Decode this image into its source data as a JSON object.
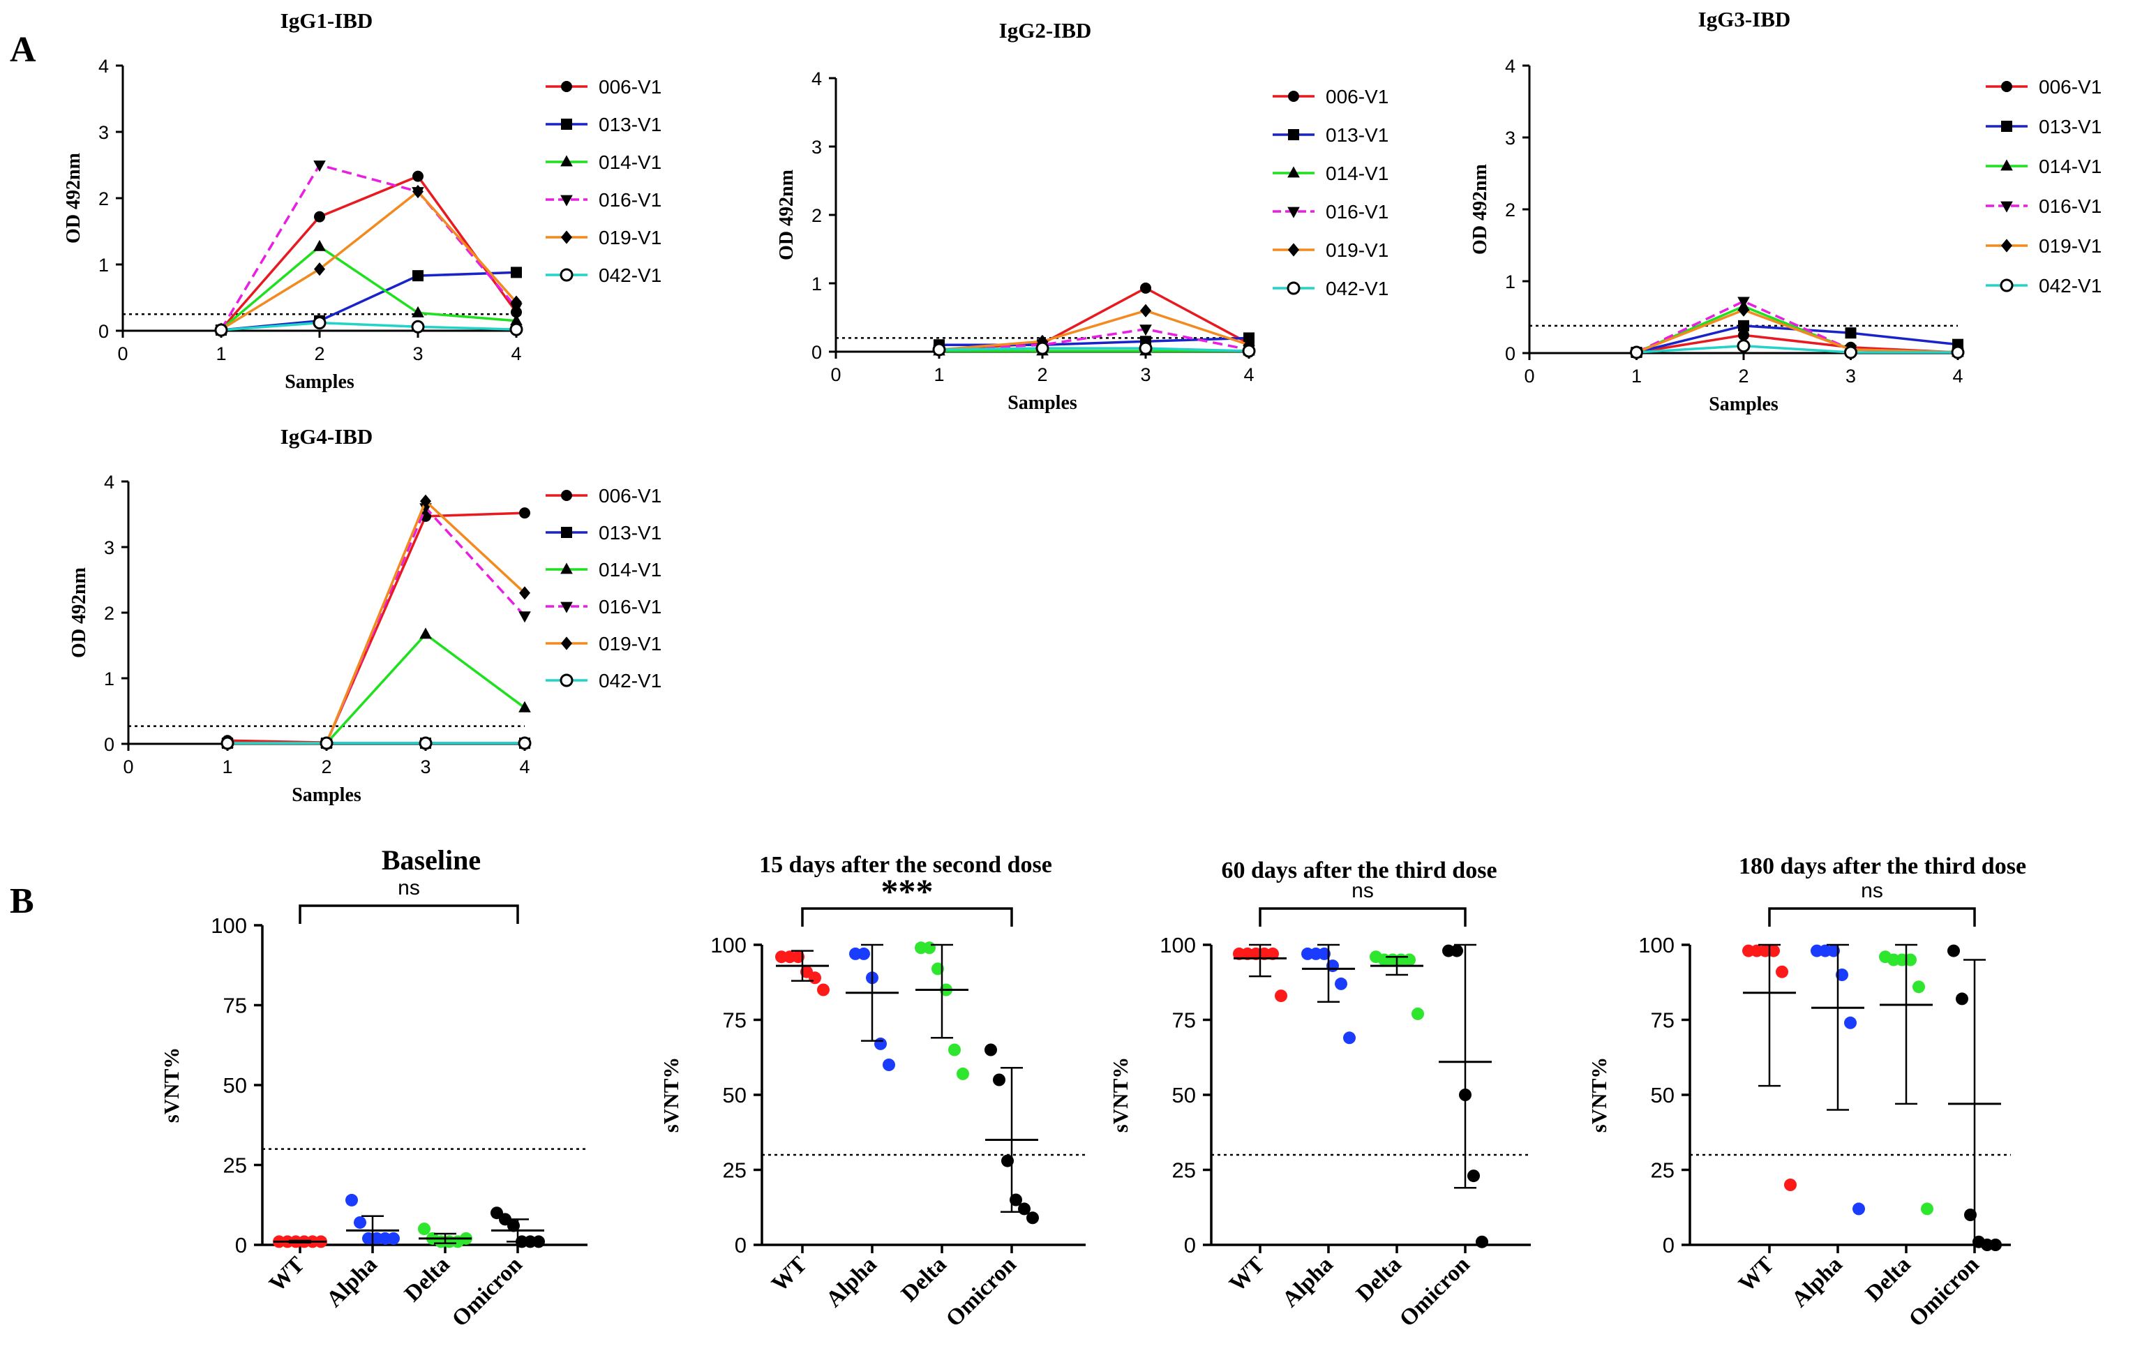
{
  "panel_labels": [
    "A",
    "B"
  ],
  "colors": {
    "006-V1": "#e8191f",
    "013-V1": "#1a23c9",
    "014-V1": "#1fe01f",
    "016-V1": "#e81fe0",
    "019-V1": "#f28a1f",
    "042-V1": "#22d3c8",
    "WT": "#ff1a1a",
    "Alpha": "#1a3cff",
    "Delta": "#2ee62e",
    "Omicron": "#000000"
  },
  "chart_data": [
    {
      "type": "line",
      "title": "IgG1-IBD",
      "xlabel": "Samples",
      "ylabel": "OD 492nm",
      "xlim": [
        0,
        4
      ],
      "ylim": [
        0,
        4
      ],
      "xticks": [
        0,
        1,
        2,
        3,
        4
      ],
      "yticks": [
        0,
        1,
        2,
        3,
        4
      ],
      "threshold": 0.25,
      "legend_position": "right",
      "x": [
        1,
        2,
        3,
        4
      ],
      "series": [
        {
          "name": "006-V1",
          "marker": "circle",
          "dashed": false,
          "values": [
            0.02,
            1.72,
            2.33,
            0.28
          ]
        },
        {
          "name": "013-V1",
          "marker": "square",
          "dashed": false,
          "values": [
            0.01,
            0.15,
            0.83,
            0.88
          ]
        },
        {
          "name": "014-V1",
          "marker": "triangle",
          "dashed": false,
          "values": [
            0.02,
            1.27,
            0.27,
            0.15
          ]
        },
        {
          "name": "016-V1",
          "marker": "triangle-down",
          "dashed": true,
          "values": [
            0.02,
            2.5,
            2.1,
            0.35
          ]
        },
        {
          "name": "019-V1",
          "marker": "diamond",
          "dashed": false,
          "values": [
            0.02,
            0.93,
            2.1,
            0.43
          ]
        },
        {
          "name": "042-V1",
          "marker": "circle-open",
          "dashed": false,
          "values": [
            0.01,
            0.12,
            0.06,
            0.02
          ]
        }
      ]
    },
    {
      "type": "line",
      "title": "IgG2-IBD",
      "xlabel": "Samples",
      "ylabel": "OD 492nm",
      "xlim": [
        0,
        4
      ],
      "ylim": [
        0,
        4
      ],
      "xticks": [
        0,
        1,
        2,
        3,
        4
      ],
      "yticks": [
        0,
        1,
        2,
        3,
        4
      ],
      "threshold": 0.2,
      "legend_position": "right",
      "x": [
        1,
        2,
        3,
        4
      ],
      "series": [
        {
          "name": "006-V1",
          "marker": "circle",
          "dashed": false,
          "values": [
            0.03,
            0.12,
            0.93,
            0.12
          ]
        },
        {
          "name": "013-V1",
          "marker": "square",
          "dashed": false,
          "values": [
            0.1,
            0.1,
            0.15,
            0.2
          ]
        },
        {
          "name": "014-V1",
          "marker": "triangle",
          "dashed": false,
          "values": [
            0.01,
            0.01,
            0.01,
            0.01
          ]
        },
        {
          "name": "016-V1",
          "marker": "triangle-down",
          "dashed": true,
          "values": [
            0.03,
            0.1,
            0.33,
            0.03
          ]
        },
        {
          "name": "019-V1",
          "marker": "diamond",
          "dashed": false,
          "values": [
            0.03,
            0.15,
            0.6,
            0.1
          ]
        },
        {
          "name": "042-V1",
          "marker": "circle-open",
          "dashed": false,
          "values": [
            0.03,
            0.05,
            0.05,
            0.01
          ]
        }
      ]
    },
    {
      "type": "line",
      "title": "IgG3-IBD",
      "xlabel": "Samples",
      "ylabel": "OD 492nm",
      "xlim": [
        0,
        4
      ],
      "ylim": [
        0,
        4
      ],
      "xticks": [
        0,
        1,
        2,
        3,
        4
      ],
      "yticks": [
        0,
        1,
        2,
        3,
        4
      ],
      "threshold": 0.38,
      "legend_position": "right",
      "x": [
        1,
        2,
        3,
        4
      ],
      "series": [
        {
          "name": "006-V1",
          "marker": "circle",
          "dashed": false,
          "values": [
            0.01,
            0.25,
            0.08,
            0.01
          ]
        },
        {
          "name": "013-V1",
          "marker": "square",
          "dashed": false,
          "values": [
            0.01,
            0.38,
            0.28,
            0.12
          ]
        },
        {
          "name": "014-V1",
          "marker": "triangle",
          "dashed": false,
          "values": [
            0.01,
            0.65,
            0.05,
            0.01
          ]
        },
        {
          "name": "016-V1",
          "marker": "triangle-down",
          "dashed": true,
          "values": [
            0.01,
            0.72,
            0.05,
            0.01
          ]
        },
        {
          "name": "019-V1",
          "marker": "diamond",
          "dashed": false,
          "values": [
            0.01,
            0.6,
            0.05,
            0.01
          ]
        },
        {
          "name": "042-V1",
          "marker": "circle-open",
          "dashed": false,
          "values": [
            0.01,
            0.1,
            0.01,
            0.01
          ]
        }
      ]
    },
    {
      "type": "line",
      "title": "IgG4-IBD",
      "xlabel": "Samples",
      "ylabel": "OD 492nm",
      "xlim": [
        0,
        4
      ],
      "ylim": [
        0,
        4
      ],
      "xticks": [
        0,
        1,
        2,
        3,
        4
      ],
      "yticks": [
        0,
        1,
        2,
        3,
        4
      ],
      "threshold": 0.27,
      "legend_position": "right",
      "x": [
        1,
        2,
        3,
        4
      ],
      "series": [
        {
          "name": "006-V1",
          "marker": "circle",
          "dashed": false,
          "values": [
            0.05,
            0.02,
            3.47,
            3.52
          ]
        },
        {
          "name": "013-V1",
          "marker": "square",
          "dashed": false,
          "values": [
            0.01,
            0.01,
            0.01,
            0.01
          ]
        },
        {
          "name": "014-V1",
          "marker": "triangle",
          "dashed": false,
          "values": [
            0.01,
            0.01,
            1.67,
            0.55
          ]
        },
        {
          "name": "016-V1",
          "marker": "triangle-down",
          "dashed": true,
          "values": [
            0.01,
            0.01,
            3.6,
            1.95
          ]
        },
        {
          "name": "019-V1",
          "marker": "diamond",
          "dashed": false,
          "values": [
            0.01,
            0.01,
            3.7,
            2.3
          ]
        },
        {
          "name": "042-V1",
          "marker": "circle-open",
          "dashed": false,
          "values": [
            0.01,
            0.01,
            0.01,
            0.01
          ]
        }
      ]
    },
    {
      "type": "scatter",
      "title": "Baseline",
      "xlabel": "",
      "ylabel": "sVNT%",
      "ylim": [
        0,
        100
      ],
      "yticks": [
        0,
        25,
        50,
        75,
        100
      ],
      "threshold": 30,
      "categories": [
        "WT",
        "Alpha",
        "Delta",
        "Omicron"
      ],
      "significance": "ns",
      "groups": [
        {
          "name": "WT",
          "points": [
            1,
            1,
            1,
            1,
            1,
            1
          ],
          "mean": 1,
          "sd": 0.3
        },
        {
          "name": "Alpha",
          "points": [
            14,
            7,
            2,
            2,
            2,
            2
          ],
          "mean": 4.5,
          "sd": 4.5
        },
        {
          "name": "Delta",
          "points": [
            5,
            2,
            1,
            1,
            1,
            2
          ],
          "mean": 2,
          "sd": 1.5
        },
        {
          "name": "Omicron",
          "points": [
            10,
            8,
            6,
            1,
            1,
            1
          ],
          "mean": 4.5,
          "sd": 3.5
        }
      ]
    },
    {
      "type": "scatter",
      "title": "15 days after the second dose",
      "xlabel": "",
      "ylabel": "sVNT%",
      "ylim": [
        0,
        100
      ],
      "yticks": [
        0,
        25,
        50,
        75,
        100
      ],
      "threshold": 30,
      "categories": [
        "WT",
        "Alpha",
        "Delta",
        "Omicron"
      ],
      "significance": "***",
      "groups": [
        {
          "name": "WT",
          "points": [
            96,
            96,
            96,
            91,
            89,
            85
          ],
          "mean": 93,
          "sd": 5
        },
        {
          "name": "Alpha",
          "points": [
            97,
            97,
            89,
            67,
            60
          ],
          "mean": 84,
          "sd": 16
        },
        {
          "name": "Delta",
          "points": [
            99,
            99,
            92,
            85,
            65,
            57
          ],
          "mean": 85,
          "sd": 16
        },
        {
          "name": "Omicron",
          "points": [
            65,
            55,
            28,
            15,
            12,
            9
          ],
          "mean": 35,
          "sd": 24
        }
      ]
    },
    {
      "type": "scatter",
      "title": "60 days after the third dose",
      "xlabel": "",
      "ylabel": "sVNT%",
      "ylim": [
        0,
        100
      ],
      "yticks": [
        0,
        25,
        50,
        75,
        100
      ],
      "threshold": 30,
      "categories": [
        "WT",
        "Alpha",
        "Delta",
        "Omicron"
      ],
      "significance": "ns",
      "groups": [
        {
          "name": "WT",
          "points": [
            97,
            97,
            97,
            97,
            97,
            83
          ],
          "mean": 95.5,
          "sd": 6
        },
        {
          "name": "Alpha",
          "points": [
            97,
            97,
            97,
            93,
            87,
            69
          ],
          "mean": 92,
          "sd": 11
        },
        {
          "name": "Delta",
          "points": [
            96,
            95,
            95,
            95,
            95,
            77
          ],
          "mean": 93,
          "sd": 3
        },
        {
          "name": "Omicron",
          "points": [
            98,
            98,
            50,
            23,
            1
          ],
          "mean": 61,
          "sd": 42
        }
      ]
    },
    {
      "type": "scatter",
      "title": "180 days after the third dose",
      "xlabel": "",
      "ylabel": "sVNT%",
      "ylim": [
        0,
        100
      ],
      "yticks": [
        0,
        25,
        50,
        75,
        100
      ],
      "threshold": 30,
      "categories": [
        "WT",
        "Alpha",
        "Delta",
        "Omicron"
      ],
      "significance": "ns",
      "groups": [
        {
          "name": "WT",
          "points": [
            98,
            98,
            98,
            98,
            91,
            20
          ],
          "mean": 84,
          "sd": 31
        },
        {
          "name": "Alpha",
          "points": [
            98,
            98,
            98,
            90,
            74,
            12
          ],
          "mean": 79,
          "sd": 34
        },
        {
          "name": "Delta",
          "points": [
            96,
            95,
            95,
            95,
            86,
            12
          ],
          "mean": 80,
          "sd": 33
        },
        {
          "name": "Omicron",
          "points": [
            98,
            82,
            10,
            1,
            0,
            0
          ],
          "mean": 47,
          "sd": 48
        }
      ]
    }
  ]
}
